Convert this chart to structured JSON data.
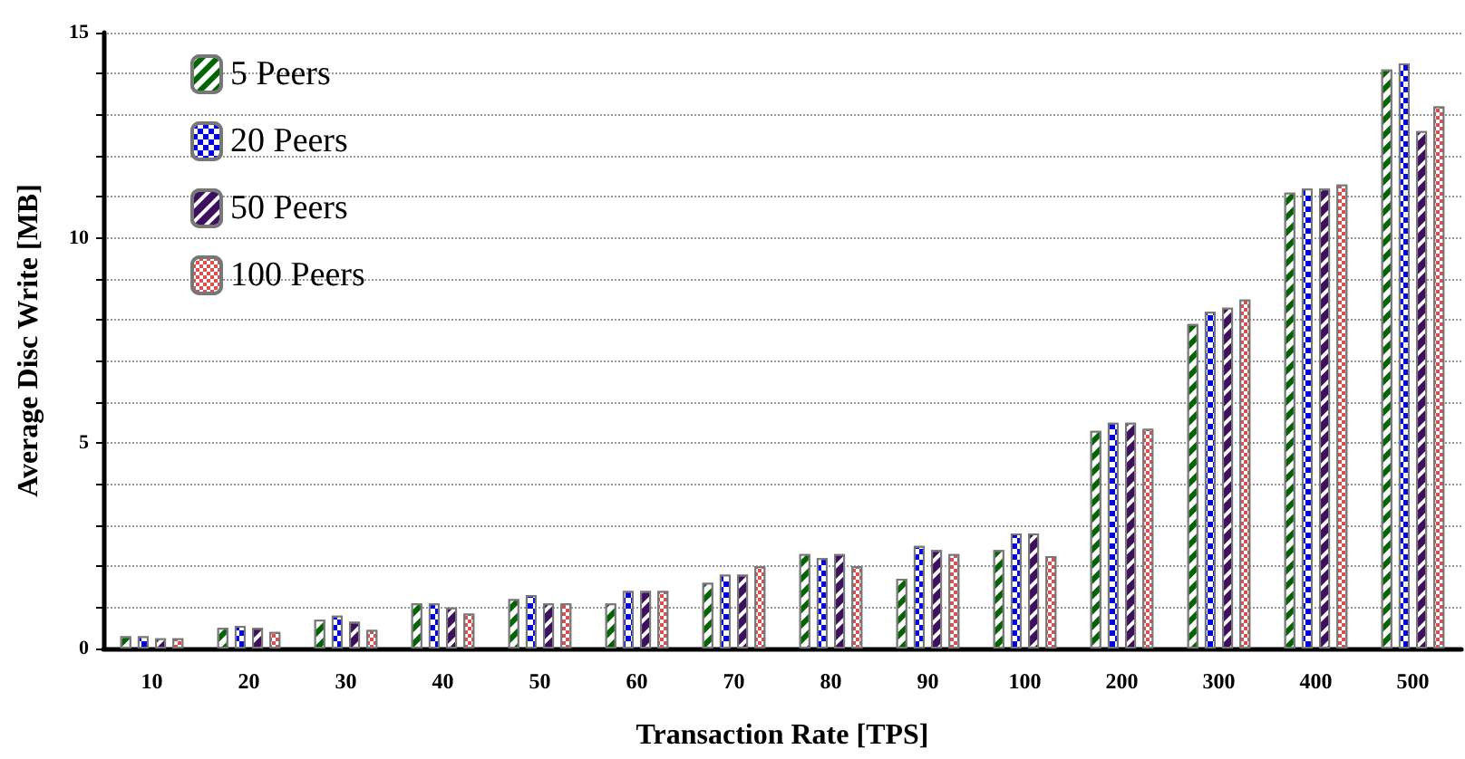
{
  "chart_data": {
    "type": "bar",
    "xlabel": "Transaction Rate [TPS]",
    "ylabel": "Average Disc Write [MB]",
    "categories": [
      "10",
      "20",
      "30",
      "40",
      "50",
      "60",
      "70",
      "80",
      "90",
      "100",
      "200",
      "300",
      "400",
      "500"
    ],
    "series": [
      {
        "name": "5 Peers",
        "color": "#006400",
        "values": [
          0.3,
          0.5,
          0.7,
          1.1,
          1.2,
          1.1,
          1.6,
          2.3,
          1.7,
          2.4,
          5.3,
          7.9,
          11.1,
          14.1
        ]
      },
      {
        "name": "20 Peers",
        "color": "#0000e0",
        "values": [
          0.3,
          0.55,
          0.8,
          1.1,
          1.3,
          1.4,
          1.8,
          2.2,
          2.5,
          2.8,
          5.5,
          8.2,
          11.2,
          14.25
        ]
      },
      {
        "name": "50 Peers",
        "color": "#3f0f5f",
        "values": [
          0.25,
          0.5,
          0.65,
          1.0,
          1.1,
          1.4,
          1.8,
          2.3,
          2.4,
          2.8,
          5.5,
          8.3,
          11.2,
          12.6
        ]
      },
      {
        "name": "100 Peers",
        "color": "#d85050",
        "values": [
          0.25,
          0.4,
          0.45,
          0.85,
          1.1,
          1.4,
          2.0,
          2.0,
          2.3,
          2.25,
          5.35,
          8.5,
          11.3,
          13.2
        ]
      }
    ],
    "ylim": [
      0,
      15
    ],
    "yticks": [
      0,
      {
        "value": 1,
        "label": null
      },
      {
        "value": 2,
        "label": null
      },
      {
        "value": 3,
        "label": null
      },
      {
        "value": 4,
        "label": null
      },
      5,
      {
        "value": 6,
        "label": null
      },
      {
        "value": 7,
        "label": null
      },
      {
        "value": 8,
        "label": null
      },
      {
        "value": 9,
        "label": null
      },
      10,
      {
        "value": 11,
        "label": null
      },
      {
        "value": 12,
        "label": null
      },
      {
        "value": 13,
        "label": null
      },
      {
        "value": 14,
        "label": null
      },
      15
    ],
    "grid": "y",
    "legend": "top left"
  }
}
